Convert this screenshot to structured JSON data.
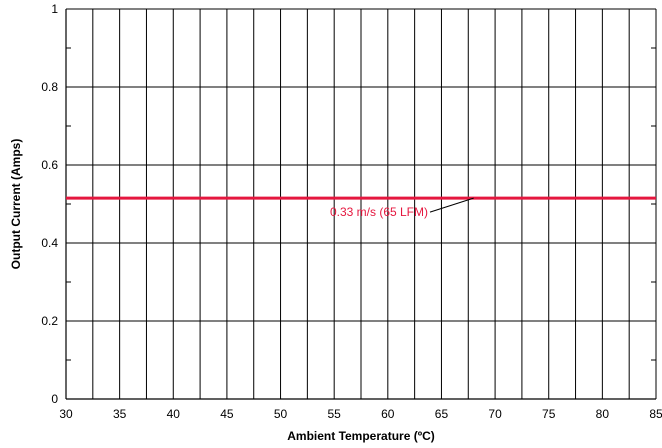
{
  "chart_data": {
    "type": "line",
    "title": "",
    "xlabel": "Ambient Temperature (ºC)",
    "ylabel": "Output Current (Amps)",
    "xlim": [
      30,
      85
    ],
    "ylim": [
      0,
      1
    ],
    "x_ticks": [
      30,
      35,
      40,
      45,
      50,
      55,
      60,
      65,
      70,
      75,
      80,
      85
    ],
    "x_tick_labels": [
      "30",
      "35",
      "40",
      "45",
      "50",
      "55",
      "60",
      "65",
      "70",
      "75",
      "80",
      "85"
    ],
    "y_ticks": [
      0,
      0.2,
      0.4,
      0.6,
      0.8,
      1
    ],
    "y_tick_labels": [
      "0",
      "0.2",
      "0.4",
      "0.6",
      "0.8",
      "1"
    ],
    "x_grid_step": 2.5,
    "y_minor_step": 0.1,
    "grid": true,
    "series": [
      {
        "name": "0.33 m/s (65 LFM)",
        "color": "#e5173f",
        "x": [
          30,
          85
        ],
        "y": [
          0.515,
          0.515
        ]
      }
    ],
    "annotations": [
      {
        "text": "0.33 m/s (65 LFM)",
        "points_to": [
          68,
          0.515
        ],
        "color": "#e5173f"
      }
    ]
  }
}
